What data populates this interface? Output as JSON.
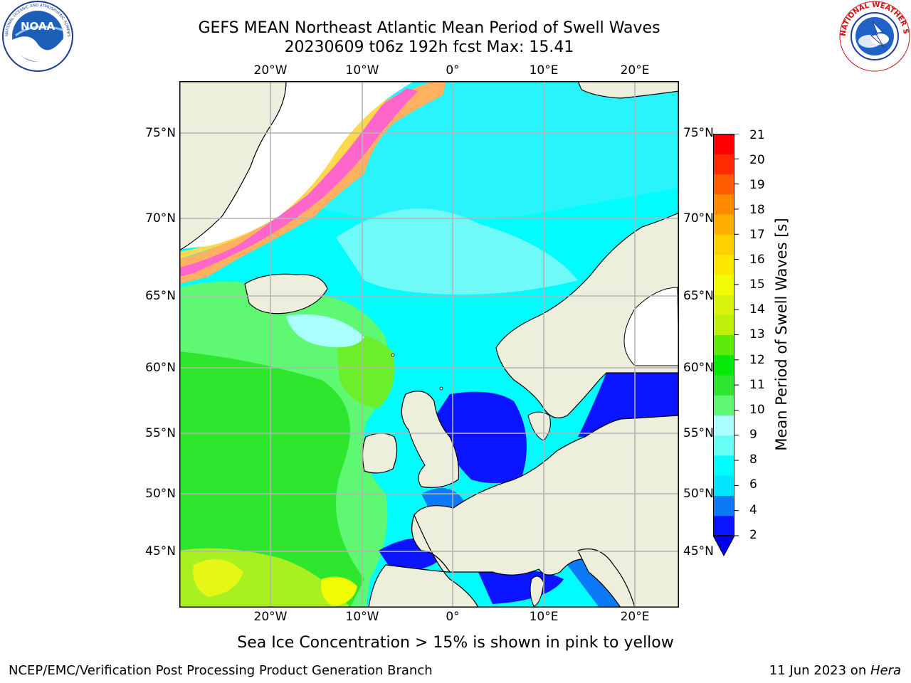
{
  "header": {
    "title_line1": "GEFS MEAN Northeast Atlantic Mean Period of Swell Waves",
    "title_line2": "20230609 t06z 192h fcst   Max: 15.41"
  },
  "logos": {
    "noaa": {
      "wordmark": "NOAA",
      "ring_text": "NATIONAL OCEANIC AND ATMOSPHERIC ADMINISTRATION · U.S. DEPARTMENT OF COMMERCE"
    },
    "nws": {
      "ring_text": "NATIONAL WEATHER SERVICE"
    }
  },
  "map": {
    "lon_ticks_top": [
      "20°W",
      "10°W",
      "0°",
      "10°E",
      "20°E"
    ],
    "lon_ticks_bottom": [
      "20°W",
      "10°W",
      "0°",
      "10°E",
      "20°E"
    ],
    "lat_ticks_left": [
      "75°N",
      "70°N",
      "65°N",
      "60°N",
      "55°N",
      "50°N",
      "45°N"
    ],
    "lat_ticks_right": [
      "75°N",
      "70°N",
      "65°N",
      "60°N",
      "55°N",
      "50°N",
      "45°N"
    ],
    "extent": {
      "lon_min": -30,
      "lon_max": 24.5,
      "lat_min": 41,
      "lat_max": 78.5
    },
    "colors": {
      "land": "#eeeedd",
      "grid": "#b4b4b4"
    }
  },
  "colorbar": {
    "label": "Mean Period of Swell Waves [s]",
    "ticks": [
      "21",
      "20",
      "19",
      "18",
      "17",
      "16",
      "15",
      "14",
      "13",
      "12",
      "11",
      "10",
      "9",
      "8",
      "6",
      "4",
      "2"
    ],
    "colors": [
      "#0a14ff",
      "#0c7af7",
      "#00e4ff",
      "#00fcfc",
      "#66fff6",
      "#aaffff",
      "#5ef873",
      "#2fe62f",
      "#06e806",
      "#5eea0a",
      "#bef00c",
      "#d8f40c",
      "#f2fa04",
      "#ffe600",
      "#ffd000",
      "#ffae00",
      "#ff8a00",
      "#ff5c00",
      "#ff2a00",
      "#ff0000"
    ],
    "extend": "min"
  },
  "caption": "Sea Ice Concentration > 15% is shown in pink to yellow",
  "footer": {
    "left": "NCEP/EMC/Verification Post Processing Product Generation Branch",
    "right_date": "11 Jun 2023 on ",
    "right_host": "Hera"
  }
}
